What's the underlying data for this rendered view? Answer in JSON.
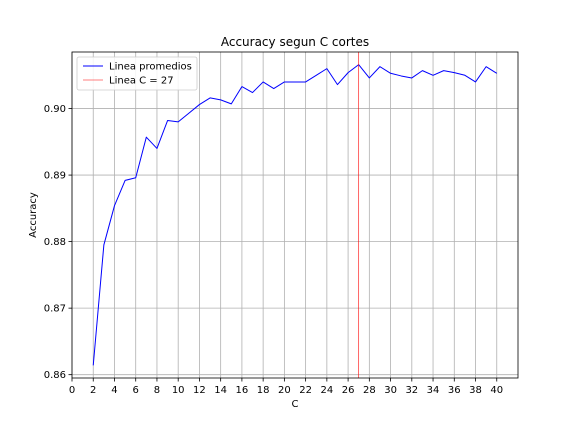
{
  "chart_data": {
    "type": "line",
    "title": "Accuracy segun C cortes",
    "xlabel": "C",
    "ylabel": "Accuracy",
    "xlim": [
      0,
      42
    ],
    "ylim": [
      0.8595,
      0.9085
    ],
    "xticks": [
      0,
      2,
      4,
      6,
      8,
      10,
      12,
      14,
      16,
      18,
      20,
      22,
      24,
      26,
      28,
      30,
      32,
      34,
      36,
      38,
      40
    ],
    "yticks": [
      0.86,
      0.87,
      0.88,
      0.89,
      0.9
    ],
    "ytick_labels": [
      "0.86",
      "0.87",
      "0.88",
      "0.89",
      "0.90"
    ],
    "grid": true,
    "legend_position": "top-left",
    "series": [
      {
        "name": "Linea promedios",
        "color": "#0000ff",
        "x": [
          2,
          3,
          4,
          5,
          6,
          7,
          8,
          9,
          10,
          11,
          12,
          13,
          14,
          15,
          16,
          17,
          18,
          19,
          20,
          21,
          22,
          23,
          24,
          25,
          26,
          27,
          28,
          29,
          30,
          31,
          32,
          33,
          34,
          35,
          36,
          37,
          38,
          39,
          40
        ],
        "y": [
          0.8614,
          0.8795,
          0.8854,
          0.8892,
          0.8896,
          0.8957,
          0.894,
          0.8982,
          0.898,
          0.8993,
          0.9006,
          0.9016,
          0.9013,
          0.9007,
          0.9033,
          0.9024,
          0.904,
          0.903,
          0.904,
          0.904,
          0.904,
          0.905,
          0.906,
          0.9036,
          0.9054,
          0.9066,
          0.9046,
          0.9063,
          0.9053,
          0.9049,
          0.9046,
          0.9057,
          0.905,
          0.9057,
          0.9054,
          0.905,
          0.904,
          0.9063,
          0.9053
        ]
      },
      {
        "name": "Linea C = 27",
        "color": "#ff0000",
        "type": "vline",
        "x": 27
      }
    ]
  }
}
